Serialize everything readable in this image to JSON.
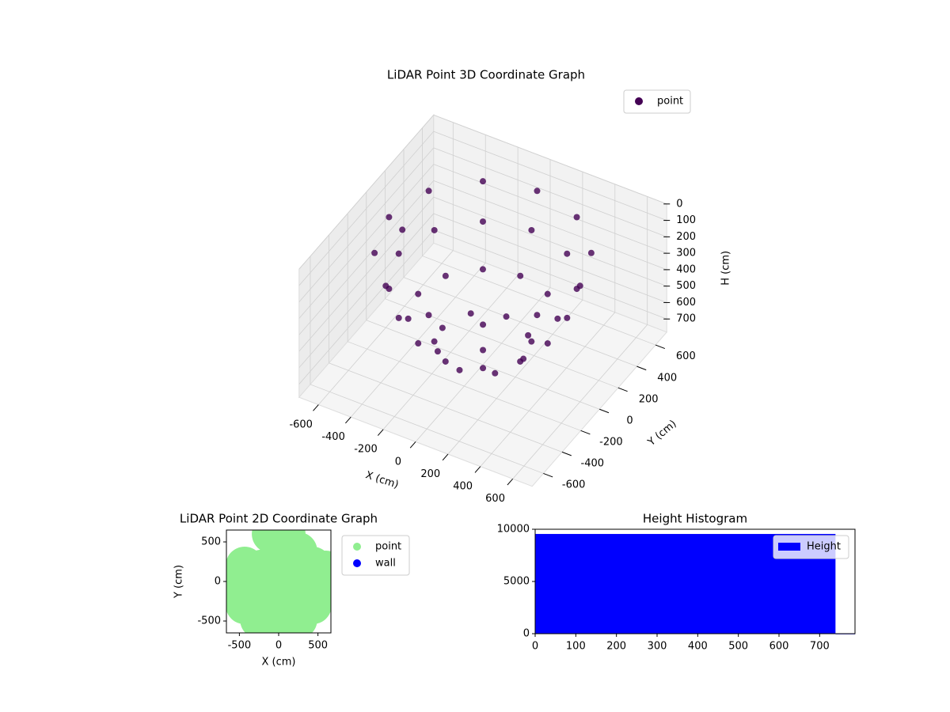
{
  "chart_data": [
    {
      "type": "scatter3d",
      "title": "LiDAR Point 3D Coordinate Graph",
      "xlabel": "X (cm)",
      "ylabel": "Y (cm)",
      "zlabel": "H (cm)",
      "xlim": [
        -720,
        720
      ],
      "ylim": [
        -720,
        720
      ],
      "zlim": [
        0,
        780
      ],
      "z_inverted": true,
      "xticks": [
        -600,
        -400,
        -200,
        0,
        200,
        400,
        600
      ],
      "yticks": [
        -600,
        -400,
        -200,
        0,
        200,
        400,
        600
      ],
      "zticks": [
        0,
        100,
        200,
        300,
        400,
        500,
        600,
        700
      ],
      "grid": true,
      "legend": "upper right",
      "series": [
        {
          "name": "point",
          "color": "#440154",
          "x": [
            580,
            502,
            290,
            0,
            -290,
            -502,
            -580,
            -502,
            -290,
            0,
            290,
            502,
            520,
            450,
            260,
            0,
            -260,
            -450,
            -520,
            -450,
            -260,
            0,
            260,
            450,
            400,
            346,
            200,
            0,
            -200,
            -346,
            -400,
            -346,
            -200,
            0,
            200,
            346,
            250,
            177,
            0,
            -177,
            -250,
            -177,
            0,
            177,
            -700
          ],
          "y": [
            0,
            290,
            502,
            580,
            502,
            290,
            0,
            -290,
            -502,
            -580,
            -502,
            -290,
            0,
            260,
            450,
            520,
            450,
            260,
            0,
            -260,
            -450,
            -520,
            -450,
            -260,
            0,
            200,
            346,
            400,
            346,
            200,
            0,
            -200,
            -346,
            -400,
            -346,
            -200,
            0,
            177,
            250,
            177,
            0,
            -177,
            -250,
            -177,
            350
          ],
          "z": [
            100,
            100,
            100,
            100,
            100,
            100,
            100,
            100,
            100,
            100,
            100,
            100,
            300,
            300,
            300,
            300,
            300,
            300,
            300,
            300,
            300,
            300,
            300,
            300,
            500,
            500,
            500,
            500,
            500,
            500,
            500,
            500,
            500,
            500,
            500,
            500,
            650,
            650,
            650,
            650,
            650,
            650,
            650,
            650,
            450
          ]
        }
      ]
    },
    {
      "type": "scatter",
      "title": "LiDAR Point 2D Coordinate Graph",
      "xlabel": "X (cm)",
      "ylabel": "Y (cm)",
      "xlim": [
        -665,
        665
      ],
      "ylim": [
        -650,
        650
      ],
      "xticks": [
        -500,
        0,
        500
      ],
      "yticks": [
        -500,
        0,
        500
      ],
      "legend": "outside right",
      "series": [
        {
          "name": "point",
          "color": "#90ee90",
          "x": [
            500,
            433,
            250,
            0,
            -250,
            -433,
            -500,
            -433,
            -250,
            0,
            250,
            433,
            300,
            212,
            0,
            -212,
            -300,
            -212,
            0,
            212,
            0,
            -550,
            -650,
            600,
            650,
            100,
            -100
          ],
          "y": [
            -50,
            200,
            383,
            450,
            -50,
            200,
            -50,
            -300,
            -483,
            -550,
            -483,
            -300,
            -50,
            162,
            250,
            162,
            -50,
            -262,
            -350,
            -262,
            -50,
            0,
            -50,
            150,
            120,
            600,
            600
          ]
        },
        {
          "name": "wall",
          "color": "#0000ff",
          "x": [],
          "y": []
        }
      ]
    },
    {
      "type": "histogram",
      "title": "Height Histogram",
      "bins": [
        0,
        739,
        787
      ],
      "xlim": [
        0,
        787
      ],
      "ylim": [
        0,
        10000
      ],
      "xticks": [
        0,
        100,
        200,
        300,
        400,
        500,
        600,
        700
      ],
      "yticks": [
        0,
        5000,
        10000
      ],
      "legend": "upper right",
      "series": [
        {
          "name": "Height",
          "color": "#0000ff",
          "values": [
            9550,
            20
          ]
        }
      ]
    }
  ]
}
